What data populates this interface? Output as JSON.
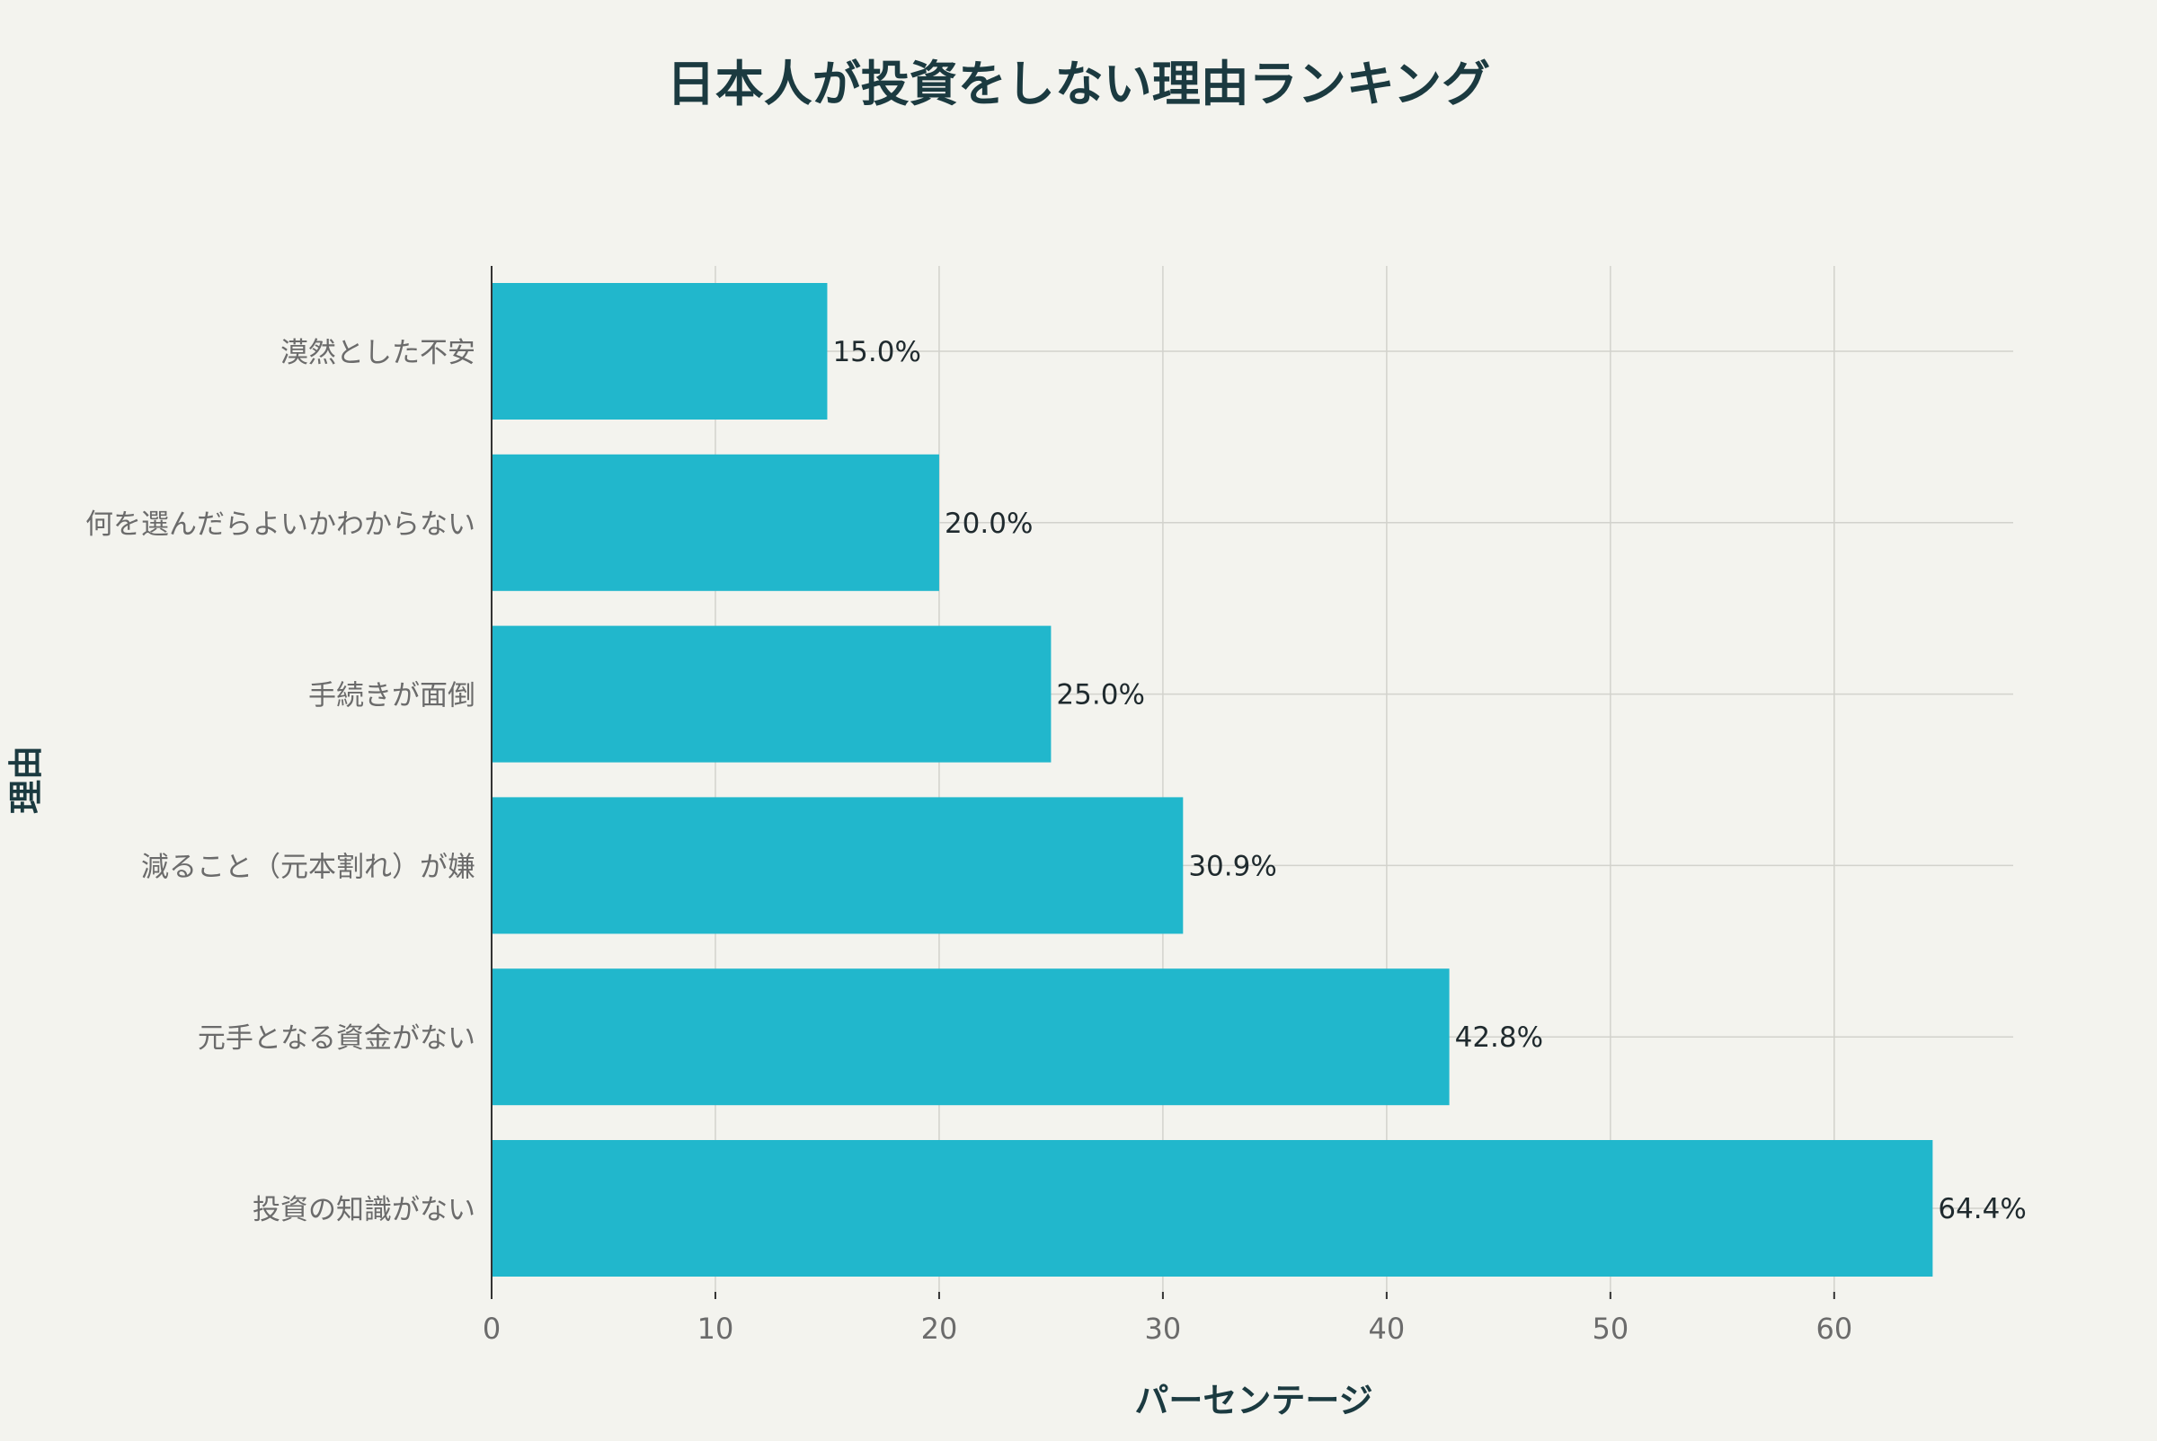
{
  "chart_data": {
    "type": "bar",
    "orientation": "horizontal",
    "title": "日本人が投資をしない理由ランキング",
    "xlabel": "パーセンテージ",
    "ylabel": "理由",
    "categories": [
      "漠然とした不安",
      "何を選んだらよいかわからない",
      "手続きが面倒",
      "減ること（元本割れ）が嫌",
      "元手となる資金がない",
      "投資の知識がない"
    ],
    "values": [
      15.0,
      20.0,
      25.0,
      30.9,
      42.8,
      64.4
    ],
    "value_labels": [
      "15.0%",
      "20.0%",
      "25.0%",
      "30.9%",
      "42.8%",
      "64.4%"
    ],
    "xticks": [
      0,
      10,
      20,
      30,
      40,
      50,
      60
    ],
    "xlim": [
      0,
      68
    ],
    "grid": true,
    "legend": "none",
    "colors": {
      "bar": "#21b7cc",
      "background": "#f3f3ee",
      "title": "#1b3a40",
      "grid": "#d2d2cc",
      "axis": "#333333",
      "tick_label": "#6b6b6b",
      "value_label": "#1f2a2e"
    }
  }
}
